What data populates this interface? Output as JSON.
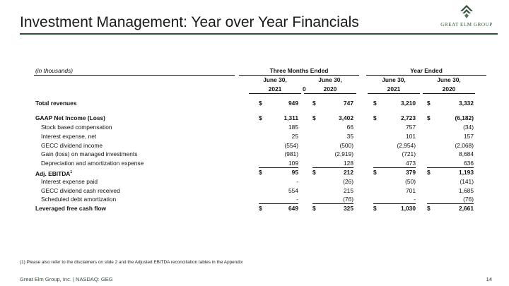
{
  "title": "Investment Management: Year over Year Financials",
  "logo": {
    "text": "GREAT ELM GROUP",
    "color": "#2f4f36"
  },
  "table": {
    "units_label": "(in thousands)",
    "group_headers": [
      "Three Months Ended",
      "Year Ended"
    ],
    "column_dates": [
      "June 30,",
      "June 30,",
      "June 30,",
      "June 30,"
    ],
    "column_years": [
      "2021",
      "2020",
      "2021",
      "2020"
    ],
    "stray_zero": "0",
    "rows": [
      {
        "label": "Total revenues",
        "bold": true,
        "indent": false,
        "dollar": true,
        "values": [
          "949",
          "747",
          "3,210",
          "3,332"
        ],
        "underline": false
      },
      {
        "label": "GAAP Net Income (Loss)",
        "bold": true,
        "indent": false,
        "dollar": true,
        "values": [
          "1,311",
          "3,402",
          "2,723",
          "(6,182)"
        ],
        "underline": false
      },
      {
        "label": "Stock based compensation",
        "bold": false,
        "indent": true,
        "dollar": false,
        "values": [
          "185",
          "66",
          "757",
          "(34)"
        ],
        "underline": false
      },
      {
        "label": "Interest expense, net",
        "bold": false,
        "indent": true,
        "dollar": false,
        "values": [
          "25",
          "35",
          "101",
          "157"
        ],
        "underline": false
      },
      {
        "label": "GECC dividend income",
        "bold": false,
        "indent": true,
        "dollar": false,
        "values": [
          "(554)",
          "(500)",
          "(2,954)",
          "(2,068)"
        ],
        "underline": false
      },
      {
        "label": "Gain (loss) on managed investments",
        "bold": false,
        "indent": true,
        "dollar": false,
        "values": [
          "(981)",
          "(2,919)",
          "(721)",
          "8,684"
        ],
        "underline": false
      },
      {
        "label": "Depreciation and amortization expense",
        "bold": false,
        "indent": true,
        "dollar": false,
        "values": [
          "109",
          "128",
          "473",
          "636"
        ],
        "underline": true
      },
      {
        "label": "Adj. EBITDA",
        "sup": "1",
        "bold": true,
        "indent": false,
        "dollar": true,
        "values": [
          "95",
          "212",
          "379",
          "1,193"
        ],
        "underline": false
      },
      {
        "label": "Interest expense paid",
        "bold": false,
        "indent": true,
        "dollar": false,
        "values": [
          "-",
          "(26)",
          "(50)",
          "(141)"
        ],
        "underline": false
      },
      {
        "label": "GECC dividend cash received",
        "bold": false,
        "indent": true,
        "dollar": false,
        "values": [
          "554",
          "215",
          "701",
          "1,685"
        ],
        "underline": false
      },
      {
        "label": "Scheduled debt amortization",
        "bold": false,
        "indent": true,
        "dollar": false,
        "values": [
          "-",
          "(76)",
          "-",
          "(76)"
        ],
        "underline": true
      },
      {
        "label": "Leveraged free cash flow",
        "bold": true,
        "indent": false,
        "dollar": true,
        "values": [
          "649",
          "325",
          "1,030",
          "2,661"
        ],
        "underline": false
      }
    ],
    "currency_symbol": "$",
    "band_color": "#d9d9d9"
  },
  "footnote": "(1) Please also refer to the disclaimers on slide 2 and the Adjusted EBITDA reconciliation tables in the Appendix",
  "footer": "Great Elm Group, Inc. | NASDAQ: GEG",
  "page_number": "14"
}
